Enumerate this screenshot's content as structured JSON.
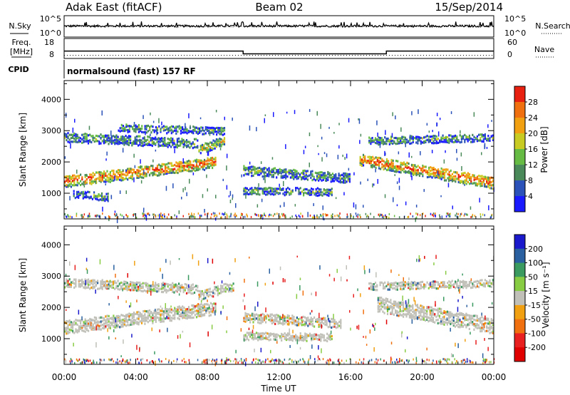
{
  "header": {
    "station": "Adak East (fitACF)",
    "beam": "Beam 02",
    "date": "15/Sep/2014"
  },
  "noise_panel": {
    "left_label": "N.Sky",
    "right_label": "N.Search",
    "left_ticks": [
      "10^5",
      "10^0"
    ],
    "right_ticks": [
      "10^5",
      "10^0"
    ]
  },
  "freq_panel": {
    "left_label_1": "Freq.",
    "left_label_2": "[MHz]",
    "left_ticks": [
      "18",
      "8"
    ],
    "right_label": "Nave",
    "right_ticks": [
      "60",
      "0"
    ],
    "freq_high_mhz": 12,
    "freq_low_mhz": 10.5,
    "freq_step_times_hr": [
      10.0,
      18.0
    ],
    "nave_level": 10
  },
  "cpid_panel": {
    "label": "CPID",
    "mode": "normalsound (fast) 157 RF"
  },
  "chart_data": [
    {
      "type": "heatmap",
      "name": "power",
      "ylabel": "Slant Range [km]",
      "yticks": [
        "1000",
        "2000",
        "3000",
        "4000"
      ],
      "ylim": [
        180,
        4600
      ],
      "xlim_hours": [
        0,
        24
      ],
      "colorbar_label": "Power [dB]",
      "colorbar_ticks": [
        "4",
        "8",
        "12",
        "16",
        "20",
        "24",
        "28"
      ],
      "colorbar_colors": [
        "#1a1aff",
        "#2a52b8",
        "#4a8a5a",
        "#66bb44",
        "#c8cc22",
        "#f0a010",
        "#f07010",
        "#e82010"
      ],
      "bands": [
        {
          "t": [
            0.0,
            8.5
          ],
          "r_start": 1380,
          "r_end": 2000,
          "width": 350,
          "level": 0.85
        },
        {
          "t": [
            0.0,
            7.5
          ],
          "r_start": 2800,
          "r_end": 2600,
          "width": 280,
          "level": 0.35
        },
        {
          "t": [
            3.0,
            9.0
          ],
          "r_start": 3100,
          "r_end": 3000,
          "width": 220,
          "level": 0.3
        },
        {
          "t": [
            7.5,
            9.0
          ],
          "r_start": 2400,
          "r_end": 2700,
          "width": 280,
          "level": 0.6
        },
        {
          "t": [
            10.0,
            16.0
          ],
          "r_start": 1750,
          "r_end": 1500,
          "width": 300,
          "level": 0.4
        },
        {
          "t": [
            10.0,
            15.0
          ],
          "r_start": 1100,
          "r_end": 1050,
          "width": 220,
          "level": 0.35
        },
        {
          "t": [
            16.5,
            24.0
          ],
          "r_start": 2100,
          "r_end": 1350,
          "width": 380,
          "level": 0.85
        },
        {
          "t": [
            17.0,
            24.0
          ],
          "r_start": 2700,
          "r_end": 2800,
          "width": 250,
          "level": 0.35
        },
        {
          "t": [
            0.5,
            2.5
          ],
          "r_start": 1000,
          "r_end": 900,
          "width": 250,
          "level": 0.3
        }
      ]
    },
    {
      "type": "heatmap",
      "name": "velocity",
      "ylabel": "Slant Range [km]",
      "yticks": [
        "1000",
        "2000",
        "3000",
        "4000"
      ],
      "ylim": [
        180,
        4600
      ],
      "xlim_hours": [
        0,
        24
      ],
      "colorbar_label": "Velocity [m s⁻¹]",
      "colorbar_ticks": [
        "200",
        "100",
        "50",
        "15",
        "-15",
        "-50",
        "-100",
        "-200"
      ],
      "colorbar_colors": [
        "#1a1acc",
        "#2a60a0",
        "#3a9a60",
        "#88cc44",
        "#c0c0b8",
        "#f0a010",
        "#f07010",
        "#e82020",
        "#e00000"
      ],
      "bands": [
        {
          "t": [
            0.0,
            8.5
          ],
          "r_start": 1380,
          "r_end": 2000,
          "width": 420,
          "level": 0.5
        },
        {
          "t": [
            0.0,
            7.5
          ],
          "r_start": 2800,
          "r_end": 2600,
          "width": 280,
          "level": 0.5
        },
        {
          "t": [
            7.5,
            9.5
          ],
          "r_start": 2400,
          "r_end": 2700,
          "width": 280,
          "level": 0.5
        },
        {
          "t": [
            10.0,
            15.5
          ],
          "r_start": 1700,
          "r_end": 1500,
          "width": 280,
          "level": 0.6
        },
        {
          "t": [
            10.0,
            15.0
          ],
          "r_start": 1100,
          "r_end": 1050,
          "width": 220,
          "level": 0.6
        },
        {
          "t": [
            17.5,
            24.0
          ],
          "r_start": 2100,
          "r_end": 1400,
          "width": 450,
          "level": 0.5
        },
        {
          "t": [
            17.0,
            24.0
          ],
          "r_start": 2700,
          "r_end": 2800,
          "width": 250,
          "level": 0.5
        }
      ]
    }
  ],
  "x_axis": {
    "ticks": [
      "00:00",
      "04:00",
      "08:00",
      "12:00",
      "16:00",
      "20:00",
      "00:00"
    ],
    "label": "Time UT"
  }
}
